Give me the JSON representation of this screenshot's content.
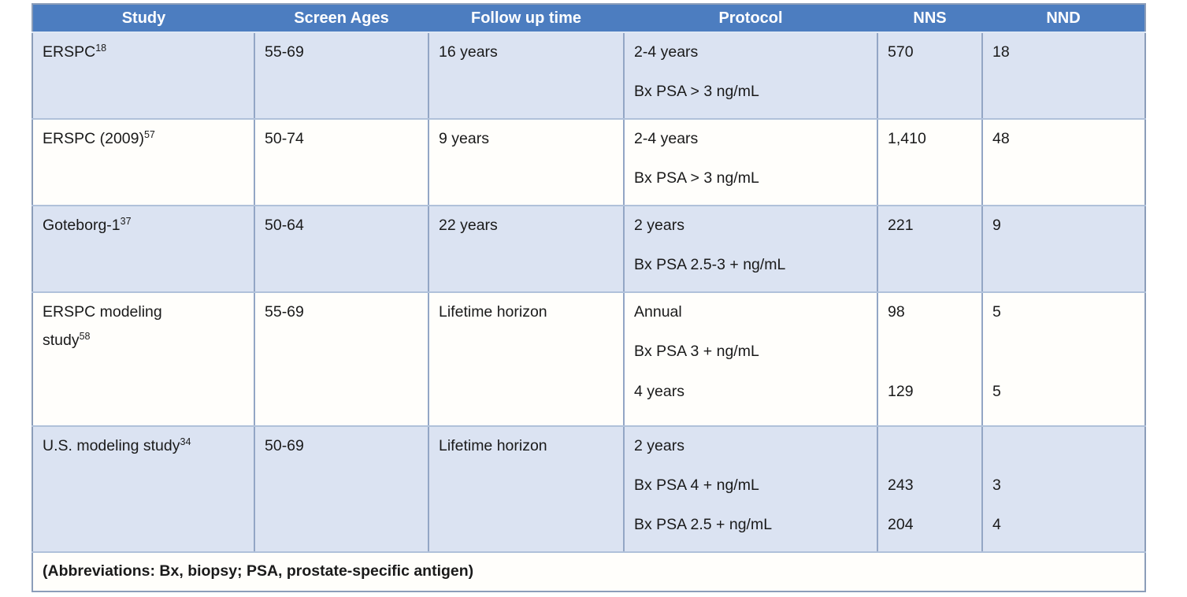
{
  "table": {
    "columns": [
      "Study",
      "Screen Ages",
      "Follow up time",
      "Protocol",
      "NNS",
      "NND"
    ],
    "rows": [
      {
        "study": [
          {
            "t": "ERSPC",
            "sup": "18"
          }
        ],
        "screen_ages": "55-69",
        "follow_up": "16 years",
        "protocol": [
          {
            "t": "2-4 years"
          },
          {
            "t": "Bx PSA > 3 ng/mL"
          }
        ],
        "nns": [
          {
            "t": "570"
          }
        ],
        "nnd": [
          {
            "t": "18"
          }
        ],
        "shaded": true
      },
      {
        "study": [
          {
            "t": "ERSPC (2009)",
            "sup": "57"
          }
        ],
        "screen_ages": "50-74",
        "follow_up": "9 years",
        "protocol": [
          {
            "t": "2-4 years"
          },
          {
            "t": "Bx PSA > 3 ng/mL"
          }
        ],
        "nns": [
          {
            "t": "1,410"
          }
        ],
        "nnd": [
          {
            "t": "48"
          }
        ],
        "shaded": false
      },
      {
        "study": [
          {
            "t": "Goteborg-1",
            "sup": "37"
          }
        ],
        "screen_ages": "50-64",
        "follow_up": "22 years",
        "protocol": [
          {
            "t": "2 years"
          },
          {
            "t": "Bx PSA 2.5-3 + ng/mL"
          }
        ],
        "nns": [
          {
            "t": "221"
          }
        ],
        "nnd": [
          {
            "t": "9"
          }
        ],
        "shaded": true
      },
      {
        "study": [
          {
            "t": "ERSPC modeling"
          },
          {
            "t": "study",
            "sup": "58"
          }
        ],
        "screen_ages": "55-69",
        "follow_up": "Lifetime horizon",
        "protocol": [
          {
            "t": "Annual"
          },
          {
            "t": "Bx PSA 3 + ng/mL"
          },
          {
            "t": "4 years",
            "gap": true
          }
        ],
        "nns": [
          {
            "t": "98"
          },
          {
            "t": ""
          },
          {
            "t": "129",
            "gap": true
          }
        ],
        "nnd": [
          {
            "t": "5"
          },
          {
            "t": ""
          },
          {
            "t": "5",
            "gap": true
          }
        ],
        "shaded": false
      },
      {
        "study": [
          {
            "t": "U.S. modeling study",
            "sup": "34"
          }
        ],
        "screen_ages": "50-69",
        "follow_up": "Lifetime horizon",
        "protocol": [
          {
            "t": "2 years"
          },
          {
            "t": "Bx PSA 4 + ng/mL"
          },
          {
            "t": "Bx PSA 2.5 + ng/mL"
          }
        ],
        "nns": [
          {
            "t": ""
          },
          {
            "t": "243"
          },
          {
            "t": "204"
          }
        ],
        "nnd": [
          {
            "t": ""
          },
          {
            "t": "3"
          },
          {
            "t": "4"
          }
        ],
        "shaded": true
      }
    ],
    "footnote": "(Abbreviations: Bx, biopsy; PSA, prostate-specific antigen)"
  },
  "colors": {
    "header_bg": "#4C7DC0",
    "header_text": "#FFFFFF",
    "row_shaded_bg": "#DBE3F2",
    "row_plain_bg": "#FFFEFB",
    "inner_border_vertical": "#93A6C5",
    "inner_border_horizontal": "#B0C1DA",
    "outer_border": "#8B9DB9",
    "body_text": "#1A1A1A"
  }
}
